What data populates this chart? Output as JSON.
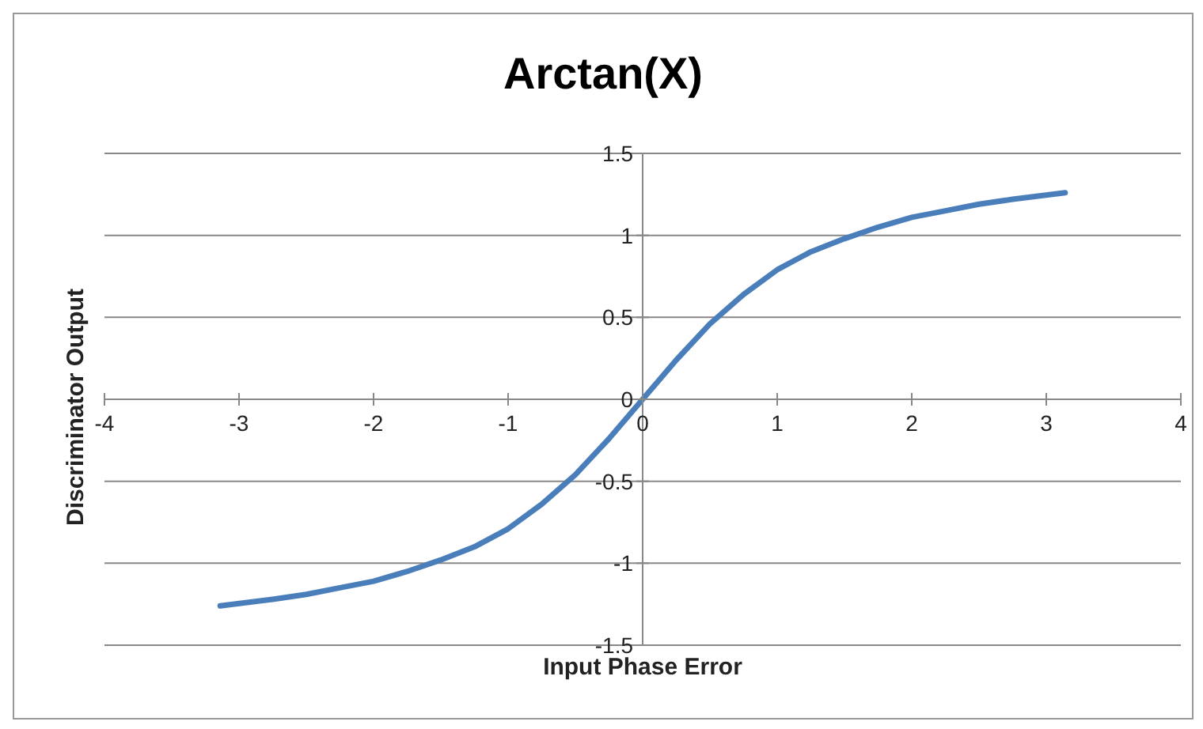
{
  "chart_data": {
    "type": "line",
    "title": "Arctan(X)",
    "xlabel": "Input Phase Error",
    "ylabel": "Discriminator Output",
    "x": [
      -3.14,
      -2.75,
      -2.5,
      -2.25,
      -2,
      -1.75,
      -1.5,
      -1.25,
      -1,
      -0.75,
      -0.5,
      -0.25,
      0,
      0.25,
      0.5,
      0.75,
      1,
      1.25,
      1.5,
      1.75,
      2,
      2.25,
      2.5,
      2.75,
      3.14
    ],
    "series": [
      {
        "color": "#4a7ebb",
        "values": [
          -1.26,
          -1.22,
          -1.19,
          -1.15,
          -1.11,
          -1.05,
          -0.98,
          -0.9,
          -0.79,
          -0.64,
          -0.46,
          -0.24,
          0,
          0.24,
          0.46,
          0.64,
          0.79,
          0.9,
          0.98,
          1.05,
          1.11,
          1.15,
          1.19,
          1.22,
          1.26
        ]
      }
    ],
    "xlim": [
      -4,
      4
    ],
    "xticks": [
      -4,
      -3,
      -2,
      -1,
      0,
      1,
      2,
      3,
      4
    ],
    "ylim": [
      -1.5,
      1.5
    ],
    "yticks": [
      -1.5,
      -1,
      -0.5,
      0,
      0.5,
      1,
      1.5
    ],
    "grid": "y",
    "legend": false,
    "marker": "none",
    "line_style": "solid"
  }
}
